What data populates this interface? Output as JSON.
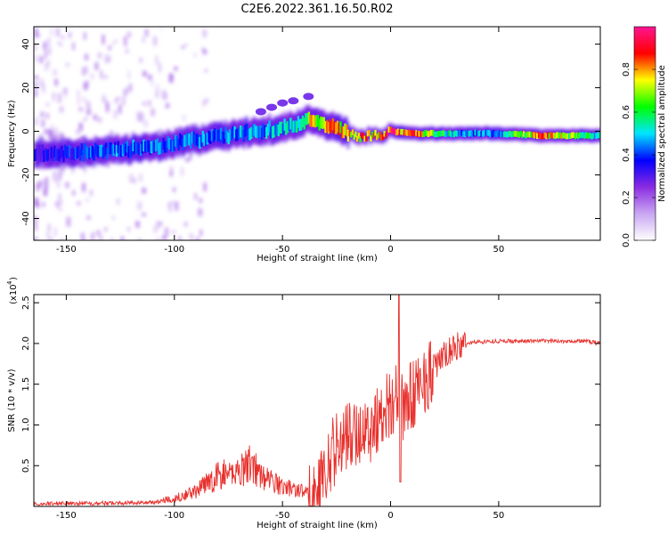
{
  "figure_title": "C2E6.2022.361.16.50.R02",
  "chart_data": [
    {
      "type": "heatmap",
      "xlabel": "Height of straight line (km)",
      "ylabel": "Frequency (Hz)",
      "xlim": [
        -165,
        97
      ],
      "ylim": [
        -50,
        48
      ],
      "xticks": [
        -150,
        -100,
        -50,
        0,
        50
      ],
      "yticks": [
        -40,
        -20,
        0,
        20,
        40
      ],
      "colorbar": {
        "label": "Normalized spectral amplitude",
        "range": [
          0.0,
          1.0
        ],
        "ticks": [
          0.0,
          0.2,
          0.4,
          0.6,
          0.8
        ],
        "colormap": [
          "#ffffff",
          "#c9a6f2",
          "#8a2be2",
          "#0000ff",
          "#00e5ff",
          "#00ff00",
          "#ffff00",
          "#ff0000",
          "#ff1493"
        ]
      },
      "ridge": {
        "description_points_x": [
          -165,
          -150,
          -130,
          -110,
          -90,
          -70,
          -55,
          -45,
          -38,
          -30,
          -20,
          -15,
          -10,
          -5,
          0,
          10,
          30,
          50,
          70,
          97
        ],
        "description_points_y": [
          -10,
          -10,
          -9,
          -7,
          -4,
          -1,
          1,
          3,
          5,
          3,
          -1,
          -3,
          -2,
          -2,
          0,
          -1,
          -1,
          -1,
          -2,
          -2
        ],
        "peak_amplitude": [
          0.35,
          0.4,
          0.45,
          0.45,
          0.45,
          0.5,
          0.5,
          0.55,
          0.75,
          0.8,
          0.85,
          0.85,
          0.8,
          0.85,
          0.95,
          0.9,
          0.5,
          0.5,
          0.9,
          0.5
        ]
      },
      "upper_branch": {
        "x": [
          -60,
          -55,
          -50,
          -45,
          -38
        ],
        "y": [
          9,
          11,
          13,
          14,
          16
        ]
      },
      "grid": false
    },
    {
      "type": "line",
      "xlabel": "Height of straight line (km)",
      "ylabel": "SNR (10 * v/v)",
      "yscale_label": "(x10",
      "yscale_exponent": "4",
      "xlim": [
        -165,
        97
      ],
      "ylim": [
        0,
        2.6
      ],
      "xticks": [
        -150,
        -100,
        -50,
        0,
        50
      ],
      "yticks": [
        0.5,
        1.0,
        1.5,
        2.0,
        2.5
      ],
      "color": "#e8302c",
      "series": [
        {
          "x": [
            -165,
            -150,
            -130,
            -110,
            -100,
            -90,
            -80,
            -70,
            -65,
            -60,
            -50,
            -40,
            -35,
            -30,
            -25,
            -20,
            -15,
            -10,
            -5,
            0,
            3,
            5,
            10,
            15,
            20,
            25,
            30,
            35,
            40,
            50,
            60,
            70,
            80,
            90,
            97
          ],
          "values": [
            0.03,
            0.04,
            0.04,
            0.05,
            0.08,
            0.15,
            0.3,
            0.35,
            0.45,
            0.3,
            0.2,
            0.15,
            0.1,
            0.45,
            0.75,
            0.85,
            0.9,
            0.95,
            1.1,
            1.3,
            1.3,
            1.2,
            1.35,
            1.55,
            1.7,
            1.85,
            1.95,
            2.0,
            2.02,
            2.03,
            2.03,
            2.03,
            2.03,
            2.03,
            2.0
          ]
        }
      ],
      "grid": false
    }
  ]
}
